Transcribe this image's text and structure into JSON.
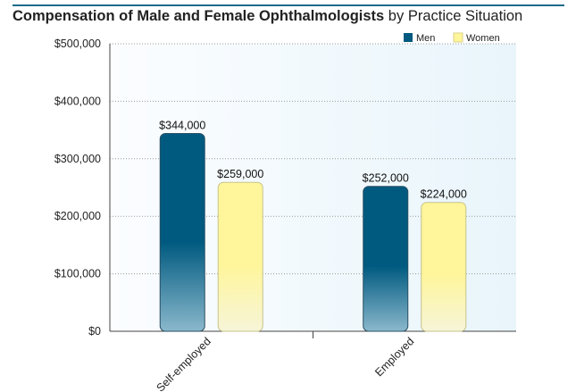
{
  "chart_data": {
    "type": "bar",
    "title_bold": "Compensation of Male and Female Ophthalmologists",
    "title_rest": " by Practice Situation",
    "categories": [
      "Self-employed",
      "Employed"
    ],
    "series": [
      {
        "name": "Men",
        "values": [
          344000,
          252000
        ],
        "labels": [
          "$344,000",
          "$252,000"
        ],
        "color": "#005a80"
      },
      {
        "name": "Women",
        "values": [
          259000,
          224000
        ],
        "labels": [
          "$259,000",
          "$224,000"
        ],
        "color": "#fff59a"
      }
    ],
    "ylim": [
      0,
      500000
    ],
    "yticks": [
      0,
      100000,
      200000,
      300000,
      400000,
      500000
    ],
    "ytick_labels": [
      "$0",
      "$100,000",
      "$200,000",
      "$300,000",
      "$400,000",
      "$500,000"
    ],
    "grid": true,
    "legend_position": "top-right",
    "xlabel": "",
    "ylabel": ""
  }
}
